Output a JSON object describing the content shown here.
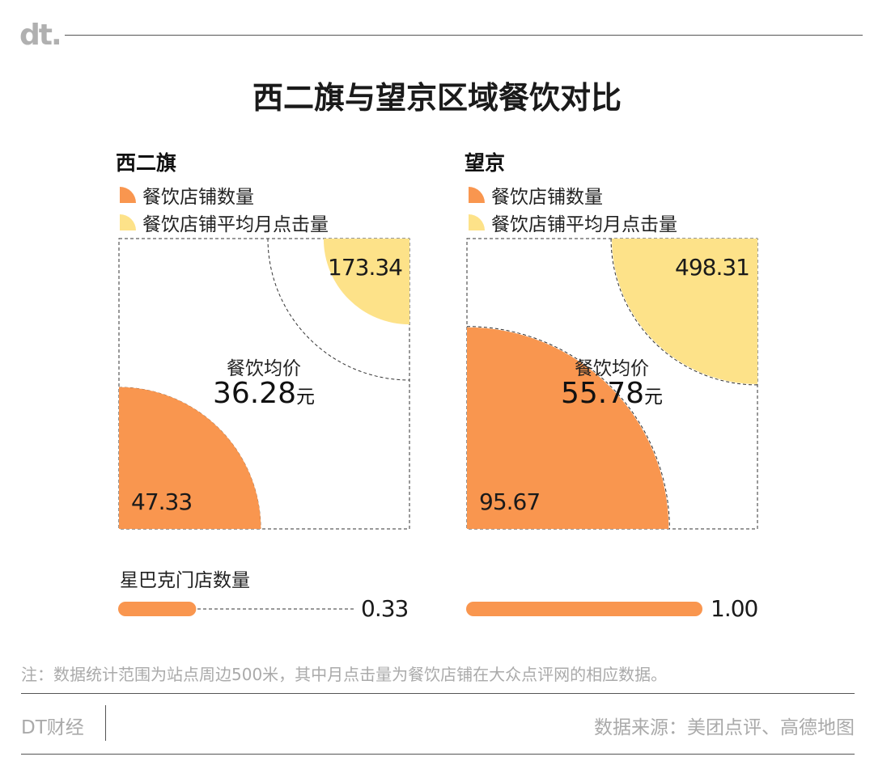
{
  "logo": "dt.",
  "title": "西二旗与望京区域餐饮对比",
  "legend": {
    "store_count": "餐饮店铺数量",
    "avg_clicks": "餐饮店铺平均月点击量"
  },
  "colors": {
    "store_count": "#f9964f",
    "avg_clicks": "#fde289",
    "starbucks": "#f9964f"
  },
  "center_label": "餐饮均价",
  "unit": "元",
  "starbucks_label": "星巴克门店数量",
  "note": "注：数据统计范围为站点周边500米，其中月点击量为餐饮店铺在大众点评网的相应数据。",
  "brand": "DT财经",
  "source": "数据来源：美团点评、高德地图",
  "chart_data": [
    {
      "type": "quarter-circle",
      "region": "西二旗",
      "store_count": 0.4733,
      "store_count_label": "47.33",
      "avg_monthly_clicks": 0.17334,
      "avg_monthly_clicks_label": "173.34",
      "avg_price": 36.28,
      "avg_price_label": "36.28",
      "starbucks_stores": 0.33,
      "starbucks_stores_label": "0.33"
    },
    {
      "type": "quarter-circle",
      "region": "望京",
      "store_count": 0.9567,
      "store_count_label": "95.67",
      "avg_monthly_clicks": 0.49831,
      "avg_monthly_clicks_label": "498.31",
      "avg_price": 55.78,
      "avg_price_label": "55.78",
      "starbucks_stores": 1.0,
      "starbucks_stores_label": "1.00"
    }
  ]
}
